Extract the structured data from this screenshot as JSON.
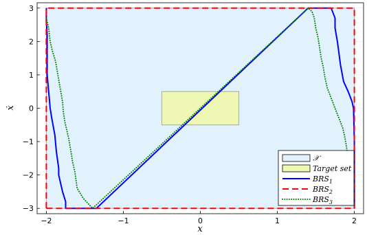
{
  "chart_data": {
    "type": "line",
    "xlabel": "x",
    "ylabel": "ẋ",
    "xlim": [
      -2.12,
      2.12
    ],
    "ylim": [
      -3.16,
      3.16
    ],
    "xticks": [
      -2,
      -1,
      0,
      1,
      2
    ],
    "xtick_labels": [
      "−2",
      "−1",
      "0",
      "1",
      "2"
    ],
    "yticks": [
      -3,
      -2,
      -1,
      0,
      1,
      2,
      3
    ],
    "ytick_labels": [
      "−3",
      "−2",
      "−1",
      "0",
      "1",
      "2",
      "3"
    ],
    "grid": true,
    "legend_position": "bottom-right",
    "series": [
      {
        "name": "𝒳",
        "kind": "region",
        "fill": "#e1f2fc",
        "stroke": "#000000",
        "x": [
          -2,
          2,
          2,
          -2
        ],
        "y": [
          -3,
          -3,
          3,
          3
        ]
      },
      {
        "name": "Target set",
        "kind": "region",
        "fill": "#eef7b3",
        "stroke": "#000000",
        "x": [
          -0.5,
          0.5,
          0.5,
          -0.5
        ],
        "y": [
          -0.5,
          -0.5,
          0.5,
          0.5
        ]
      },
      {
        "name": "BRS",
        "subscript": "1",
        "kind": "line",
        "color": "#0000ff",
        "dash": "solid",
        "x": [
          -2.0,
          -2.0,
          -1.99,
          -1.99,
          -1.95,
          -1.93,
          -1.89,
          -1.87,
          -1.84,
          -1.84,
          -1.79,
          -1.75,
          -1.75,
          -1.7,
          -1.65,
          -1.62,
          -1.55,
          -1.42,
          -1.35,
          1.4,
          1.7,
          1.75,
          1.75,
          1.78,
          1.82,
          1.86,
          1.92,
          1.97,
          1.99,
          2.0,
          2.0
        ],
        "y": [
          3.0,
          2.6,
          2.2,
          1.0,
          0.0,
          -0.3,
          -0.8,
          -1.3,
          -1.8,
          -2.0,
          -2.5,
          -2.8,
          -3.0,
          -3.0,
          -3.0,
          -3.0,
          -3.0,
          -3.0,
          -3.0,
          3.0,
          3.0,
          2.7,
          2.4,
          2.0,
          1.3,
          0.8,
          0.5,
          0.2,
          0.0,
          -1.0,
          -3.0
        ]
      },
      {
        "name": "BRS",
        "subscript": "2",
        "kind": "line",
        "color": "#ff0000",
        "dash": "dashed",
        "x": [
          -2,
          2,
          2,
          -2,
          -2
        ],
        "y": [
          -3,
          -3,
          3,
          3,
          -3
        ]
      },
      {
        "name": "BRS",
        "subscript": "3",
        "kind": "line",
        "color": "#008000",
        "dash": "dotted",
        "x": [
          -2.0,
          -1.97,
          -1.95,
          -1.92,
          -1.88,
          -1.85,
          -1.82,
          -1.79,
          -1.78,
          -1.76,
          -1.71,
          -1.68,
          -1.66,
          -1.63,
          -1.6,
          -1.52,
          -1.4,
          1.4,
          1.45,
          1.48,
          1.5,
          1.53,
          1.55,
          1.57,
          1.6,
          1.62,
          1.65,
          1.7,
          1.75,
          1.8,
          1.85,
          1.88,
          1.9,
          1.92,
          1.94,
          1.96
        ],
        "y": [
          2.7,
          2.4,
          2.0,
          1.7,
          1.4,
          1.0,
          0.6,
          0.2,
          -0.1,
          -0.4,
          -0.9,
          -1.3,
          -1.6,
          -1.9,
          -2.4,
          -2.7,
          -3.0,
          3.0,
          2.9,
          2.7,
          2.4,
          2.1,
          1.8,
          1.5,
          1.2,
          0.9,
          0.6,
          0.3,
          0.0,
          -0.3,
          -0.6,
          -0.9,
          -1.2,
          -1.5,
          -1.8,
          -2.1
        ]
      }
    ]
  }
}
